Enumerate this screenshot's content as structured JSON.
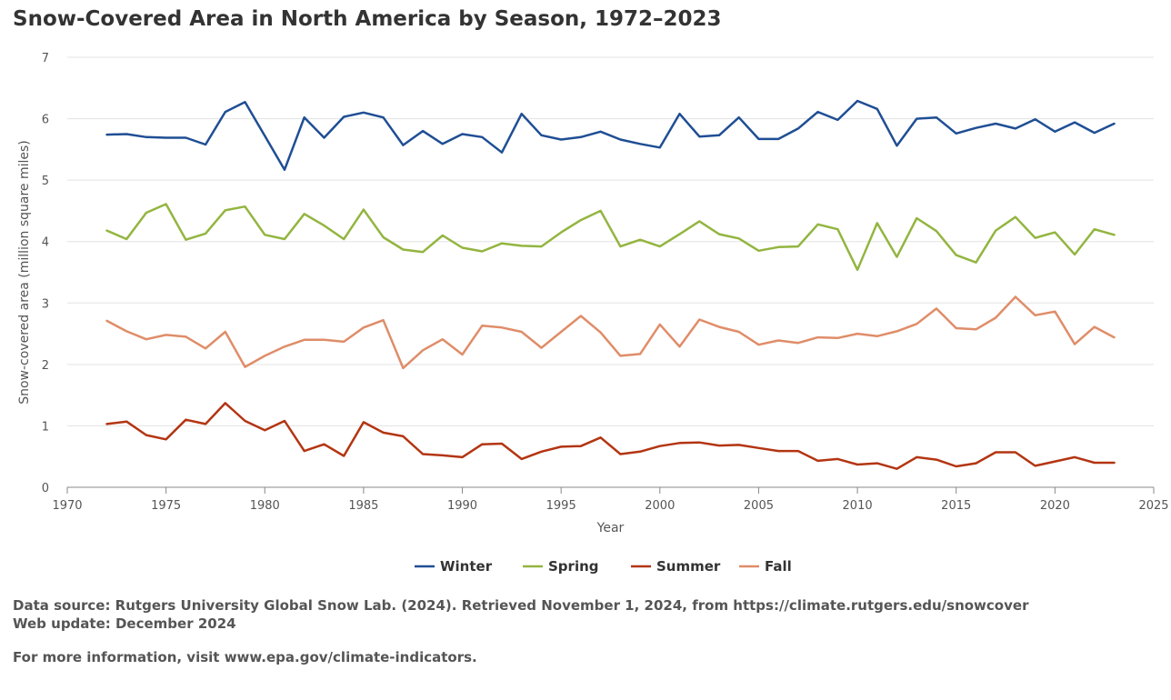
{
  "title": "Snow-Covered Area in North America by Season, 1972–2023",
  "footer": {
    "source": "Data source: Rutgers University Global Snow Lab. (2024). Retrieved November 1, 2024, from https://climate.rutgers.edu/snowcover",
    "update": "Web update: December 2024",
    "info": "For more information, visit www.epa.gov/climate-indicators."
  },
  "chart_data": {
    "type": "line",
    "title": "Snow-Covered Area in North America by Season, 1972–2023",
    "xlabel": "Year",
    "ylabel": "Snow-covered area (million square miles)",
    "xlim": [
      1970,
      2025
    ],
    "ylim": [
      0,
      7
    ],
    "xticks": [
      1970,
      1975,
      1980,
      1985,
      1990,
      1995,
      2000,
      2005,
      2010,
      2015,
      2020,
      2025
    ],
    "yticks": [
      0,
      1,
      2,
      3,
      4,
      5,
      6,
      7
    ],
    "grid": "horizontal",
    "legend": "bottom-center",
    "x": [
      1972,
      1973,
      1974,
      1975,
      1976,
      1977,
      1978,
      1979,
      1980,
      1981,
      1982,
      1983,
      1984,
      1985,
      1986,
      1987,
      1988,
      1989,
      1990,
      1991,
      1992,
      1993,
      1994,
      1995,
      1996,
      1997,
      1998,
      1999,
      2000,
      2001,
      2002,
      2003,
      2004,
      2005,
      2006,
      2007,
      2008,
      2009,
      2010,
      2011,
      2012,
      2013,
      2014,
      2015,
      2016,
      2017,
      2018,
      2019,
      2020,
      2021,
      2022,
      2023
    ],
    "series": [
      {
        "name": "Winter",
        "color": "#1f4e94",
        "values": [
          5.74,
          5.75,
          5.7,
          5.69,
          5.69,
          5.58,
          6.11,
          6.27,
          5.72,
          5.17,
          6.02,
          5.69,
          6.03,
          6.1,
          6.02,
          5.57,
          5.8,
          5.59,
          5.75,
          5.7,
          5.45,
          6.08,
          5.73,
          5.66,
          5.7,
          5.79,
          5.66,
          5.59,
          5.53,
          6.08,
          5.71,
          5.73,
          6.02,
          5.67,
          5.67,
          5.84,
          6.11,
          5.98,
          6.29,
          6.16,
          5.56,
          6.0,
          6.02,
          5.76,
          5.85,
          5.92,
          5.84,
          5.99,
          5.79,
          5.94,
          5.77,
          5.92
        ]
      },
      {
        "name": "Spring",
        "color": "#93b540",
        "values": [
          4.18,
          4.04,
          4.47,
          4.61,
          4.03,
          4.13,
          4.51,
          4.57,
          4.11,
          4.04,
          4.45,
          4.26,
          4.04,
          4.52,
          4.07,
          3.87,
          3.83,
          4.1,
          3.9,
          3.84,
          3.97,
          3.93,
          3.92,
          4.15,
          4.35,
          4.5,
          3.92,
          4.03,
          3.92,
          4.12,
          4.33,
          4.12,
          4.05,
          3.85,
          3.91,
          3.92,
          4.28,
          4.2,
          3.54,
          4.3,
          3.75,
          4.38,
          4.17,
          3.78,
          3.66,
          4.18,
          4.4,
          4.06,
          4.15,
          3.79,
          4.2,
          4.11
        ]
      },
      {
        "name": "Summer",
        "color": "#b33512",
        "values": [
          1.03,
          1.07,
          0.85,
          0.78,
          1.1,
          1.03,
          1.37,
          1.08,
          0.93,
          1.08,
          0.59,
          0.7,
          0.51,
          1.06,
          0.89,
          0.83,
          0.54,
          0.52,
          0.49,
          0.7,
          0.71,
          0.46,
          0.58,
          0.66,
          0.67,
          0.81,
          0.54,
          0.58,
          0.67,
          0.72,
          0.73,
          0.68,
          0.69,
          0.64,
          0.59,
          0.59,
          0.43,
          0.46,
          0.37,
          0.39,
          0.3,
          0.49,
          0.45,
          0.34,
          0.39,
          0.57,
          0.57,
          0.35,
          0.42,
          0.49,
          0.4,
          0.4
        ]
      },
      {
        "name": "Fall",
        "color": "#df8d69",
        "values": [
          2.71,
          2.54,
          2.41,
          2.48,
          2.45,
          2.26,
          2.53,
          1.96,
          2.14,
          2.29,
          2.4,
          2.4,
          2.37,
          2.6,
          2.72,
          1.94,
          2.23,
          2.41,
          2.16,
          2.63,
          2.6,
          2.53,
          2.27,
          2.53,
          2.79,
          2.52,
          2.14,
          2.17,
          2.65,
          2.29,
          2.73,
          2.61,
          2.53,
          2.32,
          2.39,
          2.35,
          2.44,
          2.43,
          2.5,
          2.46,
          2.54,
          2.66,
          2.91,
          2.59,
          2.57,
          2.76,
          3.1,
          2.8,
          2.86,
          2.33,
          2.61,
          2.44
        ]
      }
    ]
  }
}
